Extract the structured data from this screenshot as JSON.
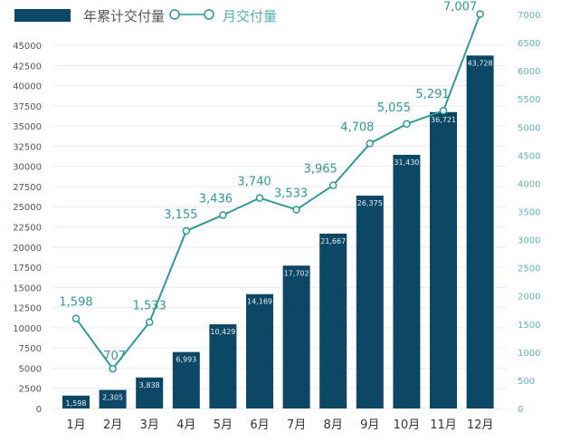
{
  "chart_data": {
    "type": "bar+line",
    "categories": [
      "1月",
      "2月",
      "3月",
      "4月",
      "5月",
      "6月",
      "7月",
      "8月",
      "9月",
      "10月",
      "11月",
      "12月"
    ],
    "series": [
      {
        "name": "年累计交付量",
        "type": "bar",
        "axis": "left",
        "values": [
          1598,
          2305,
          3838,
          6993,
          10429,
          14169,
          17702,
          21667,
          26375,
          31430,
          36721,
          43728
        ],
        "labels": [
          "1,598",
          "2,305",
          "3,838",
          "6,993",
          "10,429",
          "14,169",
          "17,702",
          "21,667",
          "26,375",
          "31,430",
          "36,721",
          "43,728"
        ],
        "color": "#0c4766"
      },
      {
        "name": "月交付量",
        "type": "line",
        "axis": "right",
        "values": [
          1598,
          707,
          1533,
          3155,
          3436,
          3740,
          3533,
          3965,
          4708,
          5055,
          5291,
          7007
        ],
        "labels": [
          "1,598",
          "707",
          "1,533",
          "3,155",
          "3,436",
          "3,740",
          "3,533",
          "3,965",
          "4,708",
          "5,055",
          "5,291",
          "7,007"
        ],
        "color": "#2f9a96"
      }
    ],
    "left_axis": {
      "ylim": [
        0,
        45000
      ],
      "ticks": [
        "0",
        "2500",
        "5000",
        "7500",
        "10000",
        "12500",
        "15000",
        "17500",
        "20000",
        "22500",
        "25000",
        "27500",
        "30000",
        "32500",
        "35000",
        "37500",
        "40000",
        "42500",
        "45000"
      ]
    },
    "right_axis": {
      "ylim": [
        0,
        7000
      ],
      "ticks": [
        "0",
        "500",
        "1000",
        "1500",
        "2000",
        "2500",
        "3000",
        "3500",
        "4000",
        "4500",
        "5000",
        "5500",
        "6000",
        "6500",
        "7000"
      ]
    },
    "grid": true,
    "legend": "top-left"
  }
}
